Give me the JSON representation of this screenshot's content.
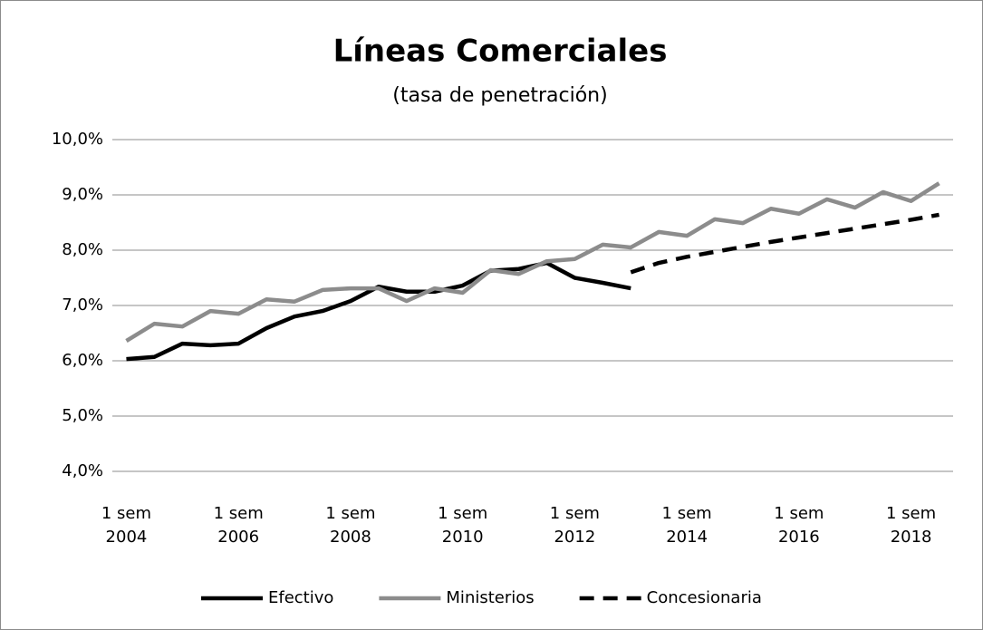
{
  "chart_data": {
    "type": "line",
    "title": "Líneas Comerciales",
    "subtitle": "(tasa de penetración)",
    "categories": [
      "1 sem 2004",
      null,
      null,
      null,
      "1 sem 2006",
      null,
      null,
      null,
      "1 sem 2008",
      null,
      null,
      null,
      "1 sem 2010",
      null,
      null,
      null,
      "1 sem 2012",
      null,
      null,
      null,
      "1 sem 2014",
      null,
      null,
      null,
      "1 sem 2016",
      null,
      null,
      null,
      "1 sem 2018",
      null
    ],
    "series": [
      {
        "name": "Efectivo",
        "color": "#000000",
        "dashed": false,
        "values": [
          6.03,
          6.07,
          6.31,
          6.28,
          6.31,
          6.59,
          6.8,
          6.9,
          7.08,
          7.34,
          7.25,
          7.25,
          7.36,
          7.63,
          7.66,
          7.77,
          7.5,
          7.41,
          7.31,
          null,
          null,
          null,
          null,
          null,
          null,
          null,
          null,
          null,
          null,
          null
        ]
      },
      {
        "name": "Ministerios",
        "color": "#8c8c8c",
        "dashed": false,
        "values": [
          6.36,
          6.67,
          6.62,
          6.9,
          6.85,
          7.11,
          7.07,
          7.28,
          7.31,
          7.31,
          7.08,
          7.31,
          7.23,
          7.64,
          7.57,
          7.8,
          7.84,
          8.1,
          8.05,
          8.33,
          8.26,
          8.56,
          8.49,
          8.75,
          8.66,
          8.92,
          8.77,
          9.05,
          8.89,
          9.21
        ]
      },
      {
        "name": "Concesionaria",
        "color": "#000000",
        "dashed": true,
        "values": [
          null,
          null,
          null,
          null,
          null,
          null,
          null,
          null,
          null,
          null,
          null,
          null,
          null,
          null,
          null,
          null,
          null,
          null,
          7.6,
          7.77,
          7.88,
          7.97,
          8.06,
          8.15,
          8.23,
          8.31,
          8.39,
          8.47,
          8.55,
          8.64
        ]
      }
    ],
    "ylim": [
      4,
      10
    ],
    "yticks": [
      {
        "value": 4,
        "label": "4,0%"
      },
      {
        "value": 5,
        "label": "5,0%"
      },
      {
        "value": 6,
        "label": "6,0%"
      },
      {
        "value": 7,
        "label": "7,0%"
      },
      {
        "value": 8,
        "label": "8,0%"
      },
      {
        "value": 9,
        "label": "9,0%"
      },
      {
        "value": 10,
        "label": "10,0%"
      }
    ],
    "grid": true,
    "legend": "bottom"
  }
}
